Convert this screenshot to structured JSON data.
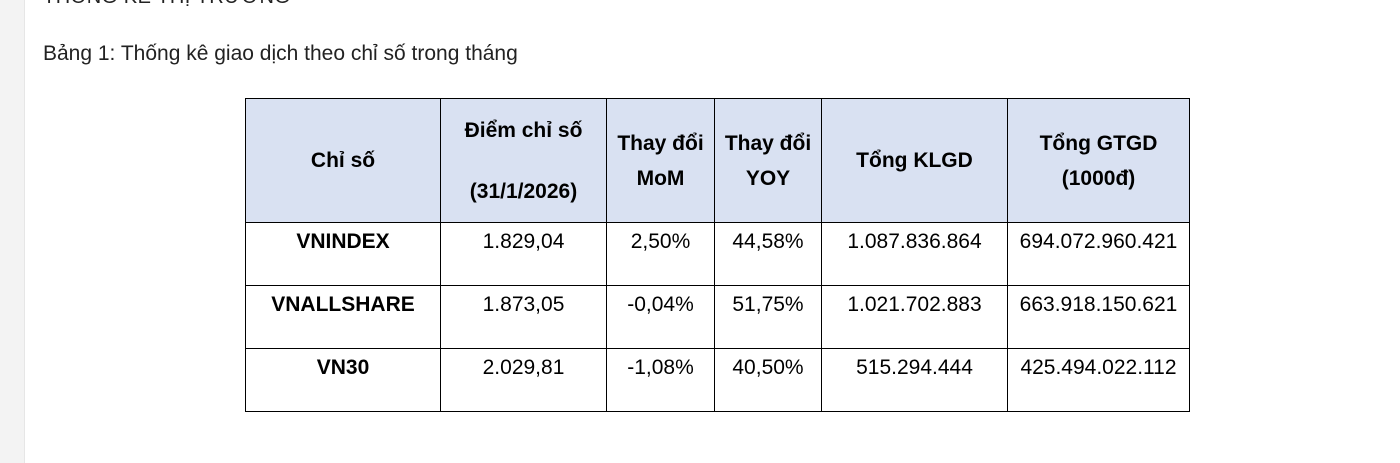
{
  "document": {
    "heading_cut": "THỐNG KÊ THỊ TRƯỜNG",
    "caption": "Bảng 1: Thống kê giao dịch theo chỉ số trong tháng"
  },
  "table": {
    "headers": {
      "index": "Chỉ số",
      "points_line1": "Điểm chỉ số",
      "points_line2": "(31/1/2026)",
      "mom_line1": "Thay đổi",
      "mom_line2": "MoM",
      "yoy_line1": "Thay đổi",
      "yoy_line2": "YOY",
      "volume": "Tổng KLGD",
      "value_line1": "Tổng GTGD",
      "value_line2": "(1000đ)"
    },
    "rows": [
      {
        "name": "VNINDEX",
        "points": "1.829,04",
        "mom": "2,50%",
        "yoy": "44,58%",
        "volume": "1.087.836.864",
        "value": "694.072.960.421"
      },
      {
        "name": "VNALLSHARE",
        "points": "1.873,05",
        "mom": "-0,04%",
        "yoy": "51,75%",
        "volume": "1.021.702.883",
        "value": "663.918.150.621"
      },
      {
        "name": "VN30",
        "points": "2.029,81",
        "mom": "-1,08%",
        "yoy": "40,50%",
        "volume": "515.294.444",
        "value": "425.494.022.112"
      }
    ]
  }
}
